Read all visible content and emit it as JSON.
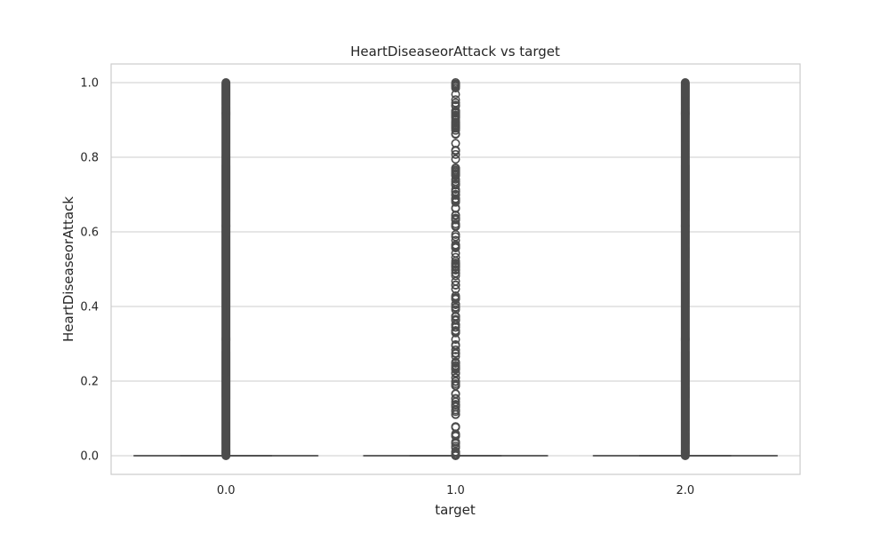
{
  "chart_data": {
    "type": "box",
    "title": "HeartDiseaseorAttack vs target",
    "xlabel": "target",
    "ylabel": "HeartDiseaseorAttack",
    "categories": [
      "0.0",
      "1.0",
      "2.0"
    ],
    "ylim": [
      -0.05,
      1.05
    ],
    "yticks": [
      "0.0",
      "0.2",
      "0.4",
      "0.6",
      "0.8",
      "1.0"
    ],
    "grid": true,
    "box_color": "#4c4c4c",
    "series": [
      {
        "category": "0.0",
        "q1": 0,
        "median": 0,
        "q3": 0,
        "whisker_low": 0,
        "whisker_high": 0,
        "outlier_density": "dense"
      },
      {
        "category": "1.0",
        "q1": 0,
        "median": 0,
        "q3": 0,
        "whisker_low": 0,
        "whisker_high": 0,
        "outlier_density": "sparse"
      },
      {
        "category": "2.0",
        "q1": 0,
        "median": 0,
        "q3": 0,
        "whisker_low": 0,
        "whisker_high": 0,
        "outlier_density": "dense"
      }
    ]
  }
}
